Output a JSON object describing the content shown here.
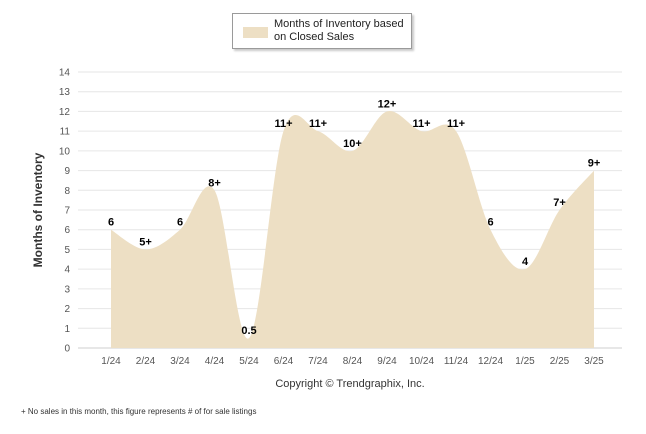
{
  "legend": {
    "label": "Months of Inventory based on Closed Sales"
  },
  "footnote": "+ No sales in this month, this figure represents # of for sale listings",
  "colors": {
    "fill": "#eddfc4",
    "grid": "#e6e6e6",
    "axis_text": "#555555",
    "label_text": "#000000"
  },
  "chart_data": {
    "type": "area",
    "categories": [
      "1/24",
      "2/24",
      "3/24",
      "4/24",
      "5/24",
      "6/24",
      "7/24",
      "8/24",
      "9/24",
      "10/24",
      "11/24",
      "12/24",
      "1/25",
      "2/25",
      "3/25"
    ],
    "series": [
      {
        "name": "Months of Inventory based on Closed Sales",
        "values": [
          6,
          5,
          6,
          8,
          0.5,
          11,
          11,
          10,
          12,
          11,
          11,
          6,
          4,
          7,
          9
        ],
        "labels": [
          "6",
          "5+",
          "6",
          "8+",
          "0.5",
          "11+",
          "11+",
          "10+",
          "12+",
          "11+",
          "11+",
          "6",
          "4",
          "7+",
          "9+"
        ]
      }
    ],
    "ylabel": "Months of Inventory",
    "xlabel": "Copyright © Trendgraphix, Inc.",
    "ylim": [
      0,
      14
    ],
    "yticks": [
      0,
      1,
      2,
      3,
      4,
      5,
      6,
      7,
      8,
      9,
      10,
      11,
      12,
      13,
      14
    ],
    "grid": true,
    "legend_position": "top-center"
  }
}
